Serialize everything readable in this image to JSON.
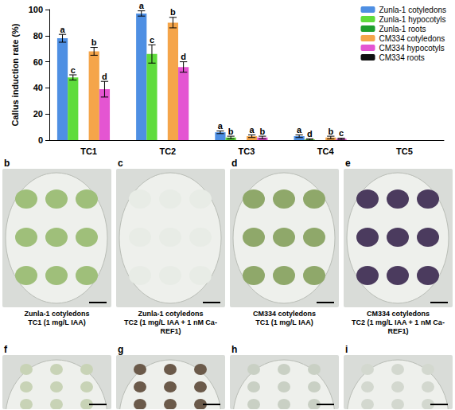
{
  "chart_data": {
    "type": "bar",
    "y_label": "Callus induction rate (%)",
    "categories": [
      "TC1",
      "TC2",
      "TC3",
      "TC4",
      "TC5"
    ],
    "ylim": [
      0,
      100
    ],
    "yticks": [
      0,
      20,
      40,
      60,
      80,
      100
    ],
    "grid": false,
    "legend": "top-right",
    "series": [
      {
        "name": "Zunla-1 cotyledons",
        "color": "#4e8fe3",
        "values": [
          78,
          97,
          6,
          3,
          0
        ],
        "errors": [
          3,
          2,
          1,
          1,
          0
        ],
        "letters": [
          "a",
          "a",
          "a",
          "a",
          null
        ]
      },
      {
        "name": "Zunla-1 hypocotyls",
        "color": "#5fdc3c",
        "values": [
          48,
          66,
          2,
          0.5,
          0
        ],
        "errors": [
          2,
          7,
          1,
          0.5,
          0
        ],
        "letters": [
          "c",
          "c",
          "b",
          "d",
          null
        ]
      },
      {
        "name": "Zunla-1 roots",
        "color": "#1f9e2c",
        "values": [
          0,
          0,
          0,
          0,
          0
        ],
        "errors": [
          0,
          0,
          0,
          0,
          0
        ],
        "letters": [
          null,
          null,
          null,
          null,
          null
        ]
      },
      {
        "name": "CM334 cotyledons",
        "color": "#f5a54a",
        "values": [
          68,
          90,
          3,
          2,
          0
        ],
        "errors": [
          3,
          4,
          1,
          1,
          0
        ],
        "letters": [
          "b",
          "b",
          "a",
          "b",
          null
        ]
      },
      {
        "name": "CM334 hypocotyls",
        "color": "#e455d2",
        "values": [
          39,
          56,
          2,
          1,
          0
        ],
        "errors": [
          6,
          4,
          1,
          0.5,
          0
        ],
        "letters": [
          "d",
          "d",
          "b",
          "c",
          null
        ]
      },
      {
        "name": "CM334 roots",
        "color": "#111111",
        "values": [
          0,
          0,
          0,
          0,
          0
        ],
        "errors": [
          0,
          0,
          0,
          0,
          0
        ],
        "letters": [
          null,
          null,
          null,
          null,
          null
        ]
      }
    ]
  },
  "panels": [
    {
      "letter": "b",
      "caption": [
        "Zunla-1 cotyledons",
        "TC1 (1 mg/L IAA)"
      ]
    },
    {
      "letter": "c",
      "caption": [
        "Zunla-1 cotyledons",
        "TC2 (1 mg/L IAA + 1 nM Ca-REF1)"
      ]
    },
    {
      "letter": "d",
      "caption": [
        "CM334 cotyledons",
        "TC1 (1 mg/L IAA)"
      ]
    },
    {
      "letter": "e",
      "caption": [
        "CM334 cotyledons",
        "TC2 (1 mg/L IAA + 1 nM Ca-REF1)"
      ]
    },
    {
      "letter": "f"
    },
    {
      "letter": "g"
    },
    {
      "letter": "h"
    },
    {
      "letter": "i"
    }
  ]
}
